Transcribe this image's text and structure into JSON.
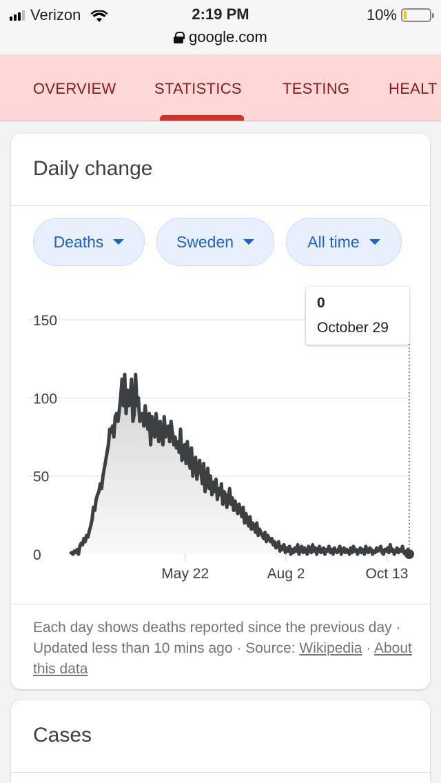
{
  "status_bar": {
    "carrier": "Verizon",
    "time": "2:19 PM",
    "battery_percent": "10%",
    "battery_level": 0.1,
    "url": "google.com"
  },
  "tabs": [
    {
      "label": "OVERVIEW"
    },
    {
      "label": "STATISTICS",
      "active": true
    },
    {
      "label": "TESTING"
    },
    {
      "label": "HEALT"
    }
  ],
  "daily_change": {
    "title": "Daily change",
    "filters": [
      {
        "label": "Deaths"
      },
      {
        "label": "Sweden"
      },
      {
        "label": "All time"
      }
    ],
    "tooltip": {
      "value": "0",
      "date": "October 29"
    },
    "footnote": {
      "text": "Each day shows deaths reported since the previous day · Updated less than 10 mins ago ·",
      "source_label": "Source:",
      "source_link": "Wikipedia",
      "separator": "·",
      "about_link": "About this data"
    }
  },
  "cases_card": {
    "title": "Cases"
  },
  "colors": {
    "tab_bg": "#fdd8d6",
    "tab_text": "#8a1c15",
    "tab_indicator": "#d93025",
    "chip_text": "#1a62d6",
    "line": "#3c4043"
  },
  "chart_data": {
    "type": "area",
    "title": "",
    "xlabel": "",
    "ylabel": "",
    "ylim": [
      0,
      150
    ],
    "yticks": [
      0,
      50,
      100,
      150
    ],
    "xticks": [
      {
        "label": "May 22",
        "day": 82
      },
      {
        "label": "Aug 2",
        "day": 154
      },
      {
        "label": "Oct 13",
        "day": 226
      }
    ],
    "x_range_days": [
      0,
      242
    ],
    "values": [
      0,
      1,
      0,
      2,
      1,
      3,
      0,
      5,
      7,
      6,
      10,
      8,
      12,
      11,
      15,
      18,
      22,
      30,
      28,
      35,
      38,
      40,
      45,
      42,
      50,
      55,
      60,
      65,
      70,
      80,
      78,
      82,
      75,
      88,
      90,
      85,
      92,
      100,
      112,
      95,
      115,
      90,
      105,
      95,
      100,
      112,
      85,
      90,
      115,
      95,
      100,
      85,
      88,
      90,
      82,
      95,
      85,
      80,
      90,
      70,
      88,
      80,
      75,
      90,
      80,
      72,
      85,
      78,
      70,
      88,
      75,
      80,
      82,
      72,
      85,
      78,
      70,
      75,
      68,
      72,
      65,
      80,
      60,
      62,
      70,
      58,
      72,
      60,
      55,
      68,
      50,
      58,
      62,
      48,
      55,
      60,
      52,
      45,
      58,
      40,
      48,
      55,
      42,
      50,
      38,
      46,
      40,
      48,
      35,
      42,
      38,
      45,
      32,
      40,
      38,
      30,
      35,
      42,
      32,
      36,
      28,
      34,
      30,
      26,
      32,
      28,
      24,
      30,
      20,
      26,
      22,
      18,
      24,
      16,
      20,
      18,
      14,
      20,
      12,
      16,
      14,
      12,
      10,
      14,
      8,
      12,
      10,
      8,
      10,
      6,
      8,
      4,
      6,
      8,
      2,
      5,
      3,
      6,
      1,
      4,
      2,
      5,
      0,
      3,
      1,
      4,
      2,
      6,
      0,
      3,
      5,
      1,
      4,
      2,
      0,
      5,
      3,
      1,
      6,
      2,
      4,
      0,
      3,
      5,
      1,
      2,
      4,
      0,
      3,
      2,
      5,
      1,
      3,
      0,
      4,
      2,
      1,
      3,
      5,
      0,
      2,
      4,
      1,
      3,
      2,
      0,
      4,
      1,
      5,
      2,
      3,
      0,
      2,
      4,
      1,
      3,
      0,
      5,
      2,
      1,
      4,
      3,
      0,
      2,
      1,
      4,
      2,
      3,
      5,
      1,
      0,
      3,
      2,
      4,
      1,
      6,
      2,
      3,
      0,
      2,
      4,
      1,
      3,
      2,
      5,
      1,
      0,
      2,
      3,
      0
    ]
  },
  "cases_footer": ""
}
